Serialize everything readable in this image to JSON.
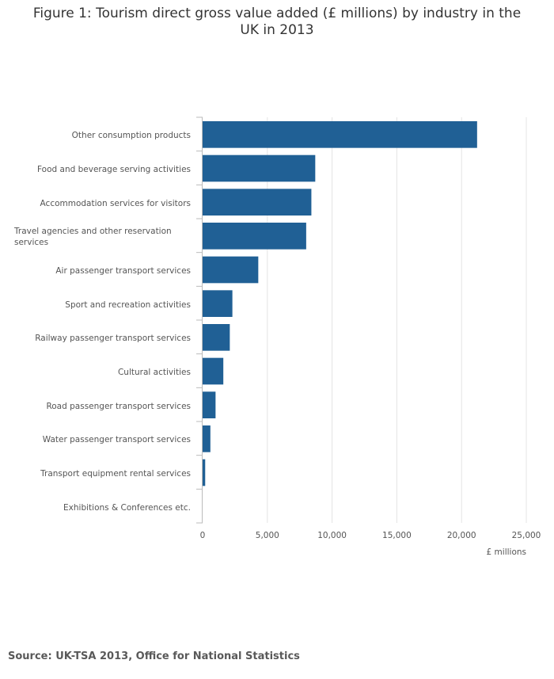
{
  "chart_data": {
    "type": "bar",
    "orientation": "horizontal",
    "title": "Figure 1: Tourism direct gross value added (£ millions) by industry in the UK in 2013",
    "x_label": "£ millions",
    "source": "Source: UK-TSA 2013, Office for National Statistics",
    "categories": [
      "Other consumption products",
      "Food and beverage serving activities",
      "Accommodation services for visitors",
      "Travel agencies and other reservation services",
      "Air passenger transport services",
      "Sport and recreation activities",
      "Railway passenger transport services",
      "Cultural activities",
      "Road passenger transport services",
      "Water passenger transport services",
      "Transport equipment rental services",
      "Exhibitions & Conferences etc."
    ],
    "values": [
      21200,
      8700,
      8400,
      8000,
      4300,
      2300,
      2100,
      1600,
      1000,
      600,
      200,
      0
    ],
    "color": "#206095",
    "xlim": [
      0,
      25000
    ],
    "xticks": [
      0,
      {
        "value": 5000,
        "label": "5,000"
      },
      {
        "value": 10000,
        "label": "10,000"
      },
      {
        "value": 15000,
        "label": "15,000"
      },
      {
        "value": 20000,
        "label": "20,000"
      },
      {
        "value": 25000,
        "label": "25,000"
      }
    ],
    "grid": true
  }
}
